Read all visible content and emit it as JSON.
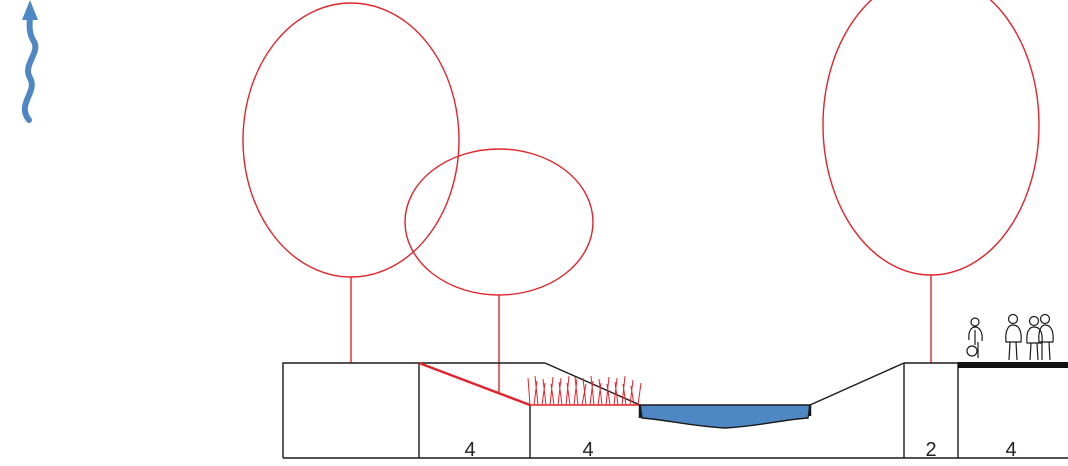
{
  "colors": {
    "tree": "#e0242c",
    "ground": "#1a1a1a",
    "water": "#4f87c4",
    "arrow": "#4f87c4",
    "reed": "#e0242c",
    "path": "#111111"
  },
  "icons": {
    "flow_arrow": "wavy-arrow-icon",
    "cyclist": "cyclist-icon",
    "pedestrian_single": "pedestrian-icon",
    "pedestrian_pair": "pedestrian-pair-icon"
  },
  "dimensions": [
    {
      "id": "zone-a",
      "label": "4"
    },
    {
      "id": "zone-b",
      "label": "4"
    },
    {
      "id": "zone-c",
      "label": "2"
    },
    {
      "id": "zone-d",
      "label": "4"
    }
  ]
}
